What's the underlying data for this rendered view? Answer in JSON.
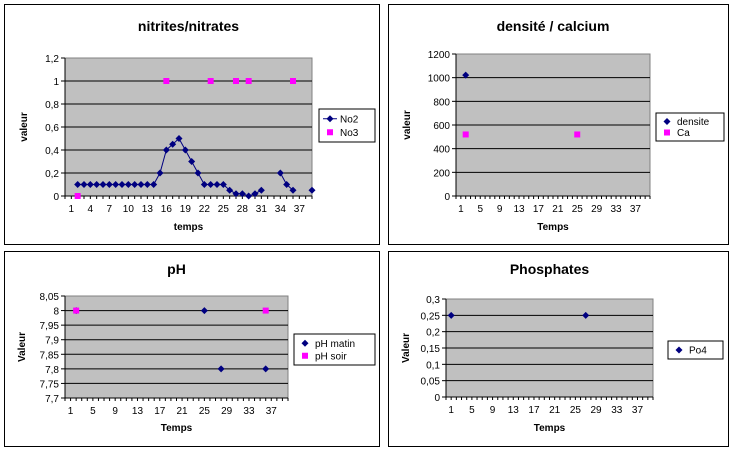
{
  "chart_data": [
    {
      "type": "line",
      "title": "nitrites/nitrates",
      "xlabel": "temps",
      "ylabel": "valeur",
      "xticks": [
        "1",
        "4",
        "7",
        "10",
        "13",
        "16",
        "19",
        "22",
        "25",
        "28",
        "31",
        "34",
        "37"
      ],
      "yticks": [
        "0",
        "0,2",
        "0,4",
        "0,6",
        "0,8",
        "1",
        "1,2"
      ],
      "ylim": [
        0,
        1.2
      ],
      "grid": true,
      "legend_position": "right",
      "series": [
        {
          "name": "No2",
          "marker": "diamond",
          "color": "#000080",
          "line": true,
          "points": [
            [
              2,
              0.1
            ],
            [
              3,
              0.1
            ],
            [
              4,
              0.1
            ],
            [
              5,
              0.1
            ],
            [
              6,
              0.1
            ],
            [
              7,
              0.1
            ],
            [
              8,
              0.1
            ],
            [
              9,
              0.1
            ],
            [
              10,
              0.1
            ],
            [
              11,
              0.1
            ],
            [
              12,
              0.1
            ],
            [
              13,
              0.1
            ],
            [
              14,
              0.1
            ],
            [
              15,
              0.2
            ],
            [
              16,
              0.4
            ],
            [
              17,
              0.45
            ],
            [
              18,
              0.5
            ],
            [
              19,
              0.4
            ],
            [
              20,
              0.3
            ],
            [
              21,
              0.2
            ],
            [
              22,
              0.1
            ],
            [
              23,
              0.1
            ],
            [
              24,
              0.1
            ],
            [
              25,
              0.1
            ],
            [
              26,
              0.05
            ],
            [
              27,
              0.02
            ],
            [
              28,
              0.02
            ],
            [
              29,
              0
            ],
            [
              30,
              0.02
            ],
            [
              31,
              0.05
            ],
            [
              null,
              null
            ],
            [
              34,
              0.2
            ],
            [
              35,
              0.1
            ],
            [
              36,
              0.05
            ],
            [
              null,
              null
            ],
            [
              39,
              0.05
            ]
          ]
        },
        {
          "name": "No3",
          "marker": "square",
          "color": "#ff00ff",
          "line": false,
          "points": [
            [
              2,
              0
            ],
            [
              16,
              1
            ],
            [
              23,
              1
            ],
            [
              27,
              1
            ],
            [
              29,
              1
            ],
            [
              36,
              1
            ]
          ]
        }
      ]
    },
    {
      "type": "scatter",
      "title": "densité / calcium",
      "xlabel": "Temps",
      "ylabel": "valeur",
      "xticks": [
        "1",
        "5",
        "9",
        "13",
        "17",
        "21",
        "25",
        "29",
        "33",
        "37"
      ],
      "yticks": [
        "0",
        "200",
        "400",
        "600",
        "800",
        "1000",
        "1200"
      ],
      "ylim": [
        0,
        1200
      ],
      "grid": true,
      "legend_position": "right",
      "series": [
        {
          "name": "densite",
          "marker": "diamond",
          "color": "#000080",
          "points": [
            [
              2,
              1022
            ]
          ]
        },
        {
          "name": "Ca",
          "marker": "square",
          "color": "#ff00ff",
          "points": [
            [
              2,
              520
            ],
            [
              25,
              520
            ]
          ]
        }
      ]
    },
    {
      "type": "scatter",
      "title": "pH",
      "xlabel": "Temps",
      "ylabel": "Valeur",
      "xticks": [
        "1",
        "5",
        "9",
        "13",
        "17",
        "21",
        "25",
        "29",
        "33",
        "37"
      ],
      "yticks": [
        "7,7",
        "7,75",
        "7,8",
        "7,85",
        "7,9",
        "7,95",
        "8",
        "8,05"
      ],
      "ylim": [
        7.7,
        8.05
      ],
      "grid": true,
      "legend_position": "right",
      "series": [
        {
          "name": "pH matin",
          "marker": "diamond",
          "color": "#000080",
          "points": [
            [
              2,
              8
            ],
            [
              25,
              8
            ],
            [
              28,
              7.8
            ],
            [
              36,
              7.8
            ]
          ]
        },
        {
          "name": "pH soir",
          "marker": "square",
          "color": "#ff00ff",
          "points": [
            [
              2,
              8
            ],
            [
              36,
              8
            ]
          ]
        }
      ]
    },
    {
      "type": "scatter",
      "title": "Phosphates",
      "xlabel": "Temps",
      "ylabel": "Valeur",
      "xticks": [
        "1",
        "5",
        "9",
        "13",
        "17",
        "21",
        "25",
        "29",
        "33",
        "37"
      ],
      "yticks": [
        "0",
        "0,05",
        "0,1",
        "0,15",
        "0,2",
        "0,25",
        "0,3"
      ],
      "ylim": [
        0,
        0.3
      ],
      "grid": true,
      "legend_position": "right",
      "series": [
        {
          "name": "Po4",
          "marker": "diamond",
          "color": "#000080",
          "points": [
            [
              1,
              0.25
            ],
            [
              27,
              0.25
            ]
          ]
        }
      ]
    }
  ]
}
